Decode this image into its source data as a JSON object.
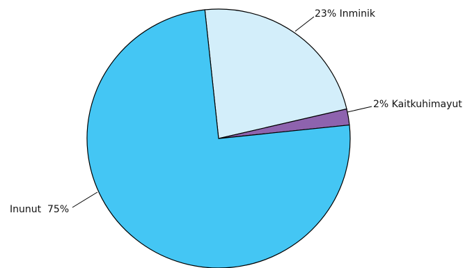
{
  "chart_data": {
    "type": "pie",
    "slices": [
      {
        "label": "Inminik",
        "value": 23,
        "label_text": "23% Inminik",
        "color": "#D3EEFA"
      },
      {
        "label": "Kaitkuhimayut",
        "value": 2,
        "label_text": "2% Kaitkuhimayut",
        "color": "#8E63AE"
      },
      {
        "label": "Inunut",
        "value": 75,
        "label_text": "Inunut  75%",
        "color": "#44C6F4"
      }
    ]
  }
}
